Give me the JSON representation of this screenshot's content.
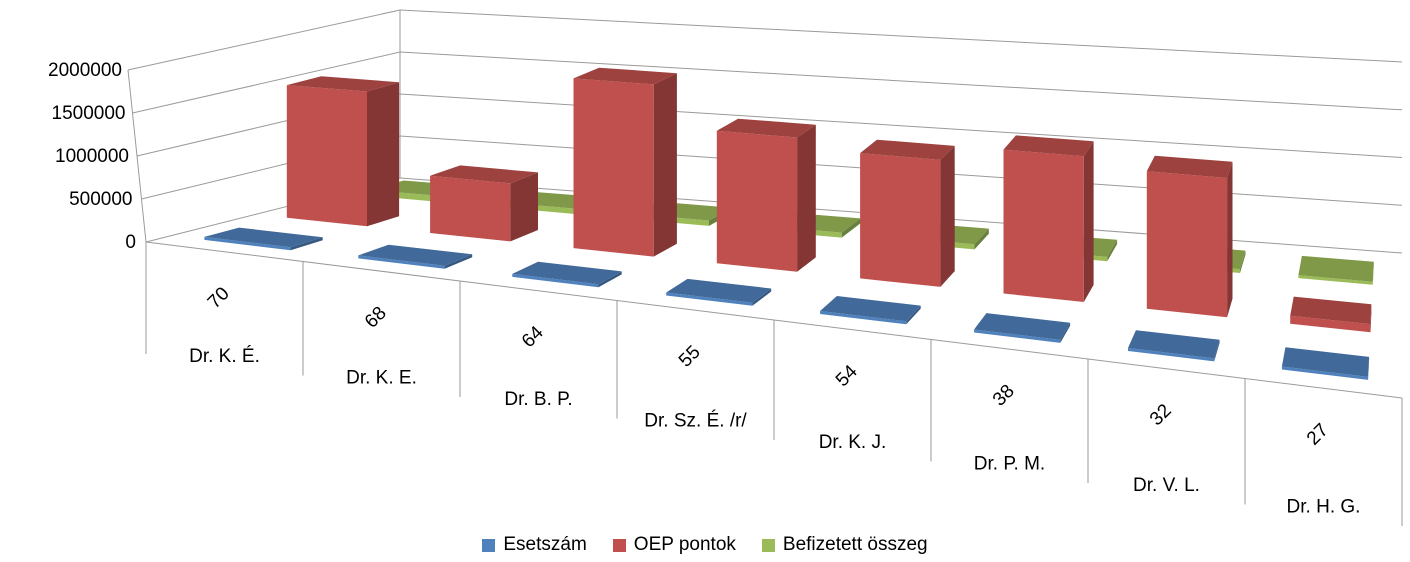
{
  "chart_data": {
    "type": "bar",
    "subtype": "3d-column",
    "title": "",
    "xlabel": "",
    "ylabel": "",
    "ylim": [
      0,
      2000000
    ],
    "yticks": [
      0,
      500000,
      1000000,
      1500000,
      2000000
    ],
    "ytick_labels": [
      "0",
      "500000",
      "1000000",
      "1500000",
      "2000000"
    ],
    "grid": true,
    "legend_position": "bottom",
    "categories": [
      {
        "count": "70",
        "name": "Dr. K. É."
      },
      {
        "count": "68",
        "name": "Dr. K. E."
      },
      {
        "count": "64",
        "name": "Dr. B. P."
      },
      {
        "count": "55",
        "name": "Dr. Sz. É. /r/"
      },
      {
        "count": "54",
        "name": "Dr. K. J."
      },
      {
        "count": "38",
        "name": "Dr. P. M."
      },
      {
        "count": "32",
        "name": "Dr. V. L."
      },
      {
        "count": "27",
        "name": "Dr. H. G."
      }
    ],
    "series": [
      {
        "name": "Esetszám",
        "color": "#4F81BD",
        "values": [
          70,
          68,
          64,
          55,
          54,
          38,
          32,
          27
        ]
      },
      {
        "name": "OEP pontok",
        "color": "#C0504D",
        "values": [
          1550000,
          650000,
          1880000,
          1430000,
          1320000,
          1480000,
          1380000,
          80000
        ]
      },
      {
        "name": "Befizetett összeg",
        "color": "#9BBB59",
        "values": [
          70000,
          60000,
          60000,
          55000,
          55000,
          45000,
          40000,
          30000
        ]
      }
    ]
  }
}
